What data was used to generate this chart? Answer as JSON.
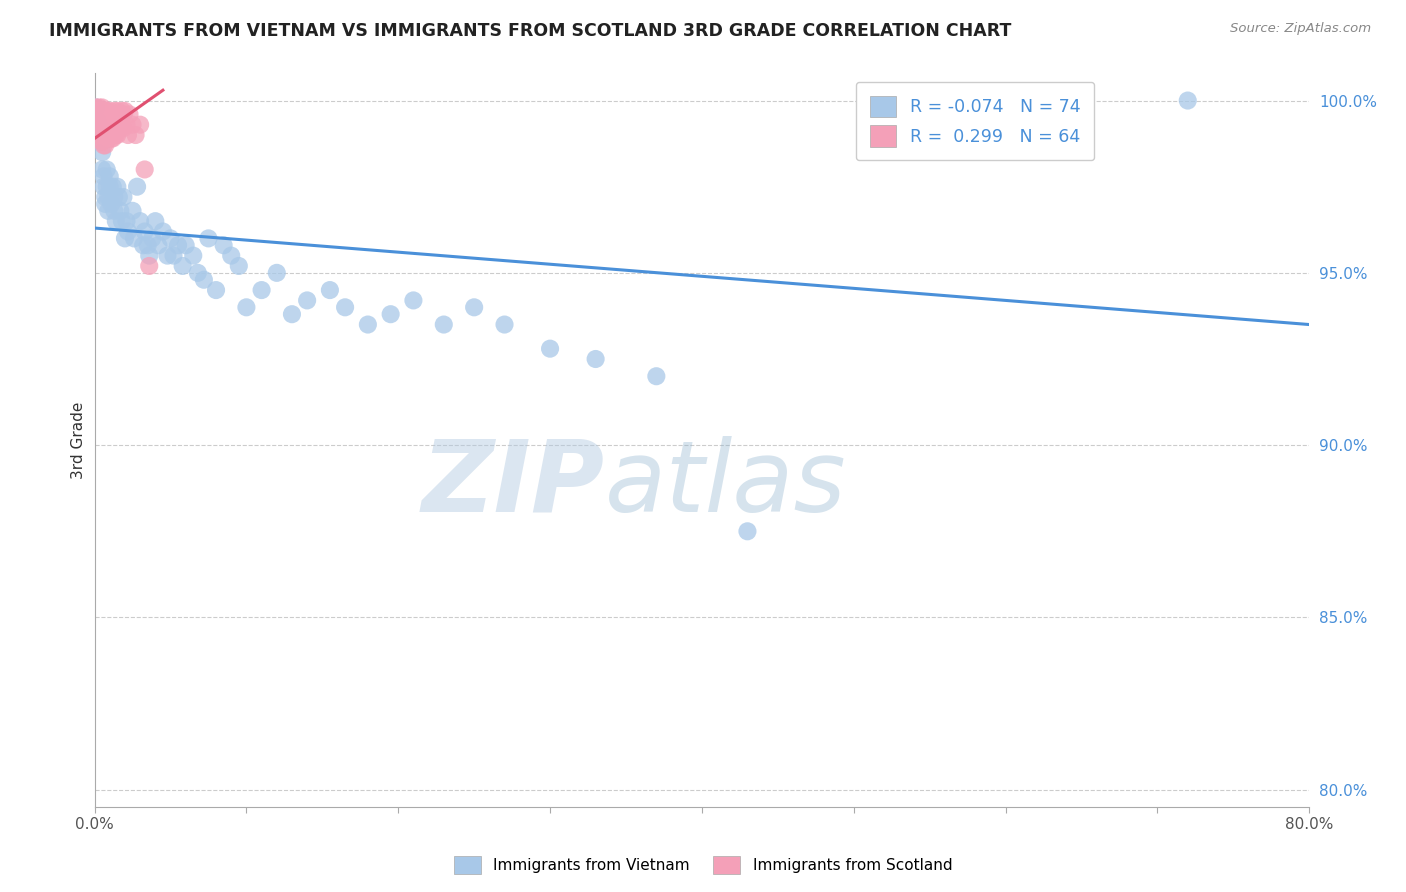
{
  "title": "IMMIGRANTS FROM VIETNAM VS IMMIGRANTS FROM SCOTLAND 3RD GRADE CORRELATION CHART",
  "source": "Source: ZipAtlas.com",
  "ylabel": "3rd Grade",
  "xlim": [
    0.0,
    0.8
  ],
  "ylim": [
    0.795,
    1.008
  ],
  "xticks": [
    0.0,
    0.1,
    0.2,
    0.3,
    0.4,
    0.5,
    0.6,
    0.7,
    0.8
  ],
  "xtick_labels": [
    "0.0%",
    "",
    "",
    "",
    "",
    "",
    "",
    "",
    "80.0%"
  ],
  "ytick_labels_right": [
    "80.0%",
    "85.0%",
    "90.0%",
    "95.0%",
    "100.0%"
  ],
  "yticks": [
    0.8,
    0.85,
    0.9,
    0.95,
    1.0
  ],
  "r_vietnam": -0.074,
  "n_vietnam": 74,
  "r_scotland": 0.299,
  "n_scotland": 64,
  "color_vietnam": "#a8c8e8",
  "color_scotland": "#f4a0b8",
  "trend_color_vietnam": "#4a90d9",
  "trend_color_scotland": "#e05070",
  "watermark_zip": "ZIP",
  "watermark_atlas": "atlas",
  "legend_vietnam": "Immigrants from Vietnam",
  "legend_scotland": "Immigrants from Scotland",
  "vietnam_x": [
    0.001,
    0.002,
    0.003,
    0.004,
    0.004,
    0.005,
    0.005,
    0.006,
    0.006,
    0.007,
    0.007,
    0.008,
    0.008,
    0.009,
    0.009,
    0.01,
    0.01,
    0.011,
    0.012,
    0.013,
    0.013,
    0.014,
    0.015,
    0.016,
    0.017,
    0.018,
    0.019,
    0.02,
    0.021,
    0.022,
    0.025,
    0.026,
    0.028,
    0.03,
    0.032,
    0.033,
    0.035,
    0.036,
    0.038,
    0.04,
    0.042,
    0.045,
    0.048,
    0.05,
    0.052,
    0.055,
    0.058,
    0.06,
    0.065,
    0.068,
    0.072,
    0.075,
    0.08,
    0.085,
    0.09,
    0.095,
    0.1,
    0.11,
    0.12,
    0.13,
    0.14,
    0.155,
    0.165,
    0.18,
    0.195,
    0.21,
    0.23,
    0.25,
    0.27,
    0.3,
    0.33,
    0.37,
    0.43,
    0.72
  ],
  "vietnam_y": [
    0.998,
    0.994,
    0.99,
    0.992,
    0.988,
    0.985,
    0.98,
    0.978,
    0.975,
    0.972,
    0.97,
    0.98,
    0.975,
    0.972,
    0.968,
    0.978,
    0.975,
    0.97,
    0.975,
    0.972,
    0.968,
    0.965,
    0.975,
    0.972,
    0.968,
    0.965,
    0.972,
    0.96,
    0.965,
    0.962,
    0.968,
    0.96,
    0.975,
    0.965,
    0.958,
    0.962,
    0.958,
    0.955,
    0.96,
    0.965,
    0.958,
    0.962,
    0.955,
    0.96,
    0.955,
    0.958,
    0.952,
    0.958,
    0.955,
    0.95,
    0.948,
    0.96,
    0.945,
    0.958,
    0.955,
    0.952,
    0.94,
    0.945,
    0.95,
    0.938,
    0.942,
    0.945,
    0.94,
    0.935,
    0.938,
    0.942,
    0.935,
    0.94,
    0.935,
    0.928,
    0.925,
    0.92,
    0.875,
    1.0
  ],
  "scotland_x": [
    0.001,
    0.001,
    0.002,
    0.002,
    0.002,
    0.003,
    0.003,
    0.003,
    0.004,
    0.004,
    0.004,
    0.005,
    0.005,
    0.005,
    0.005,
    0.006,
    0.006,
    0.006,
    0.006,
    0.007,
    0.007,
    0.007,
    0.007,
    0.008,
    0.008,
    0.008,
    0.009,
    0.009,
    0.009,
    0.01,
    0.01,
    0.01,
    0.011,
    0.011,
    0.011,
    0.012,
    0.012,
    0.012,
    0.013,
    0.013,
    0.013,
    0.014,
    0.014,
    0.014,
    0.015,
    0.015,
    0.015,
    0.016,
    0.016,
    0.017,
    0.017,
    0.018,
    0.018,
    0.019,
    0.019,
    0.02,
    0.021,
    0.022,
    0.023,
    0.025,
    0.027,
    0.03,
    0.033,
    0.036
  ],
  "scotland_y": [
    0.998,
    0.995,
    0.997,
    0.993,
    0.99,
    0.998,
    0.995,
    0.991,
    0.997,
    0.993,
    0.99,
    0.998,
    0.995,
    0.991,
    0.988,
    0.997,
    0.994,
    0.99,
    0.987,
    0.997,
    0.994,
    0.99,
    0.987,
    0.997,
    0.993,
    0.99,
    0.996,
    0.993,
    0.989,
    0.997,
    0.993,
    0.99,
    0.996,
    0.993,
    0.989,
    0.996,
    0.993,
    0.989,
    0.997,
    0.993,
    0.99,
    0.996,
    0.993,
    0.99,
    0.997,
    0.993,
    0.99,
    0.996,
    0.992,
    0.996,
    0.992,
    0.997,
    0.993,
    0.996,
    0.992,
    0.997,
    0.993,
    0.99,
    0.996,
    0.993,
    0.99,
    0.993,
    0.98,
    0.952
  ],
  "vtrend_x": [
    0.0,
    0.8
  ],
  "vtrend_y": [
    0.963,
    0.935
  ],
  "strend_x": [
    0.0,
    0.045
  ],
  "strend_y": [
    0.989,
    1.003
  ]
}
